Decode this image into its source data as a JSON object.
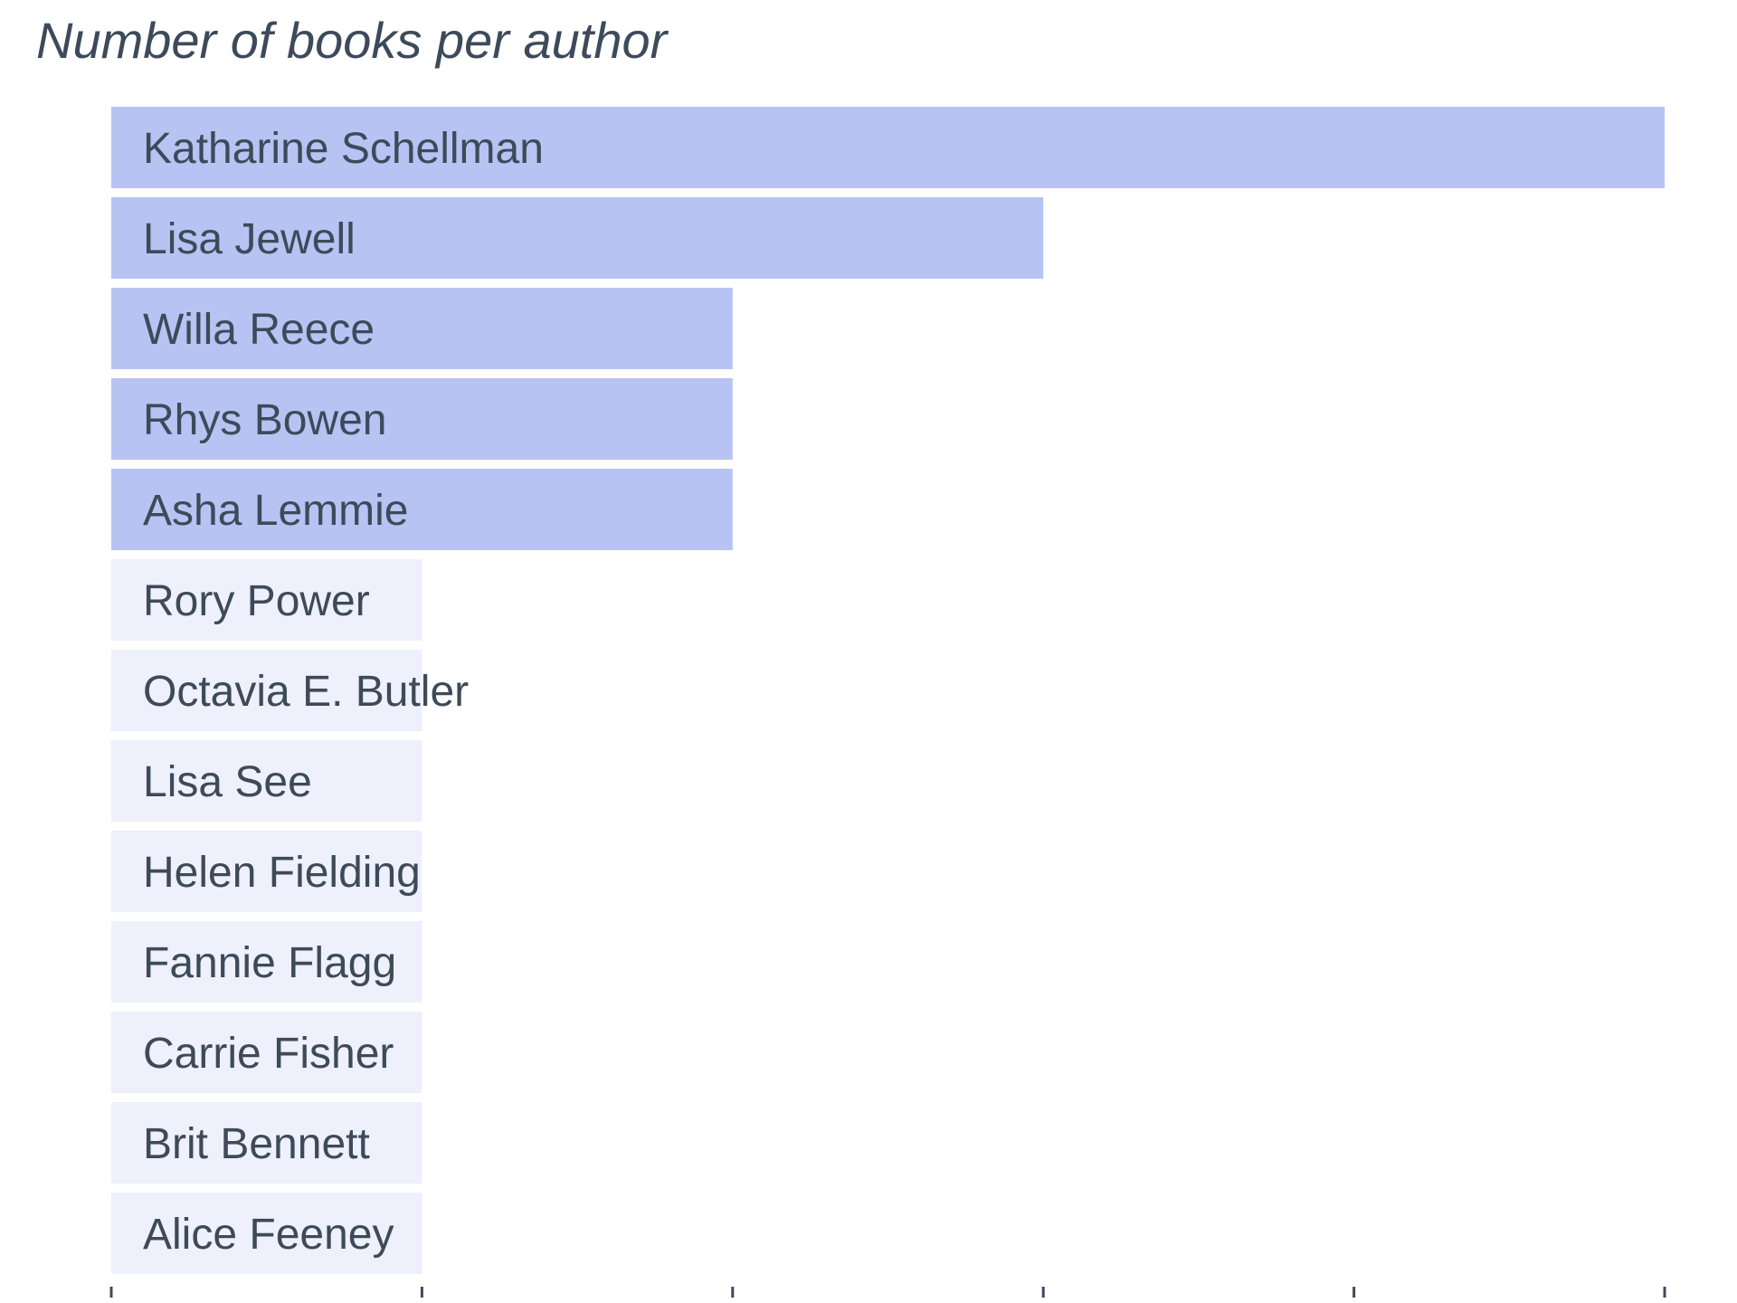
{
  "chart_data": {
    "type": "bar",
    "orientation": "horizontal",
    "title": "Number of books per author",
    "xlabel": "",
    "ylabel": "",
    "categories": [
      "Katharine Schellman",
      "Lisa Jewell",
      "Willa Reece",
      "Rhys Bowen",
      "Asha Lemmie",
      "Rory Power",
      "Octavia E. Butler",
      "Lisa See",
      "Helen Fielding",
      "Fannie Flagg",
      "Carrie Fisher",
      "Brit Bennett",
      "Alice Feeney"
    ],
    "values": [
      5,
      3,
      2,
      2,
      2,
      1,
      1,
      1,
      1,
      1,
      1,
      1,
      1
    ],
    "xlim": [
      0,
      5
    ],
    "x_tick_labels_shown": false,
    "grid": false,
    "legend": "none",
    "colors": {
      "highlight": "#b7c3f2",
      "normal": "#eef0fc",
      "label": "#3d4a5a",
      "tick": "#3d4a5a"
    }
  }
}
